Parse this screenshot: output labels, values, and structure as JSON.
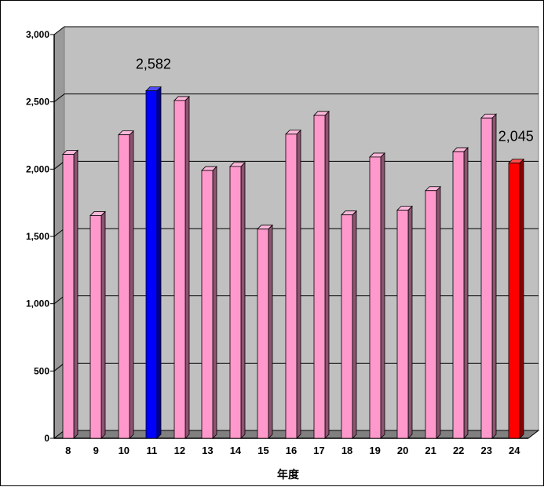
{
  "chart_data": {
    "type": "bar",
    "title": "",
    "xlabel": "年度",
    "ylabel": "",
    "categories": [
      "8",
      "9",
      "10",
      "11",
      "12",
      "13",
      "14",
      "15",
      "16",
      "17",
      "18",
      "19",
      "20",
      "21",
      "22",
      "23",
      "24"
    ],
    "values": [
      2110,
      1655,
      2255,
      2582,
      2510,
      1990,
      2020,
      1555,
      2260,
      2400,
      1660,
      2090,
      1695,
      1840,
      2130,
      2380,
      2045
    ],
    "ylim": [
      0,
      3000
    ],
    "yticks": [
      0,
      500,
      1000,
      1500,
      2000,
      2500,
      3000
    ],
    "ytick_labels": [
      "0",
      "500",
      "1,000",
      "1,500",
      "2,000",
      "2,500",
      "3,000"
    ],
    "grid": true,
    "legend": "none",
    "highlights": [
      {
        "category": "11",
        "color": "#0000FF",
        "label": "2,582"
      },
      {
        "category": "24",
        "color": "#FF0000",
        "label": "2,045"
      }
    ],
    "colors": {
      "default_bar": "#FF99CC",
      "plot_wall": "#C0C0C0",
      "floor": "#808080",
      "gridline": "#000000"
    }
  }
}
